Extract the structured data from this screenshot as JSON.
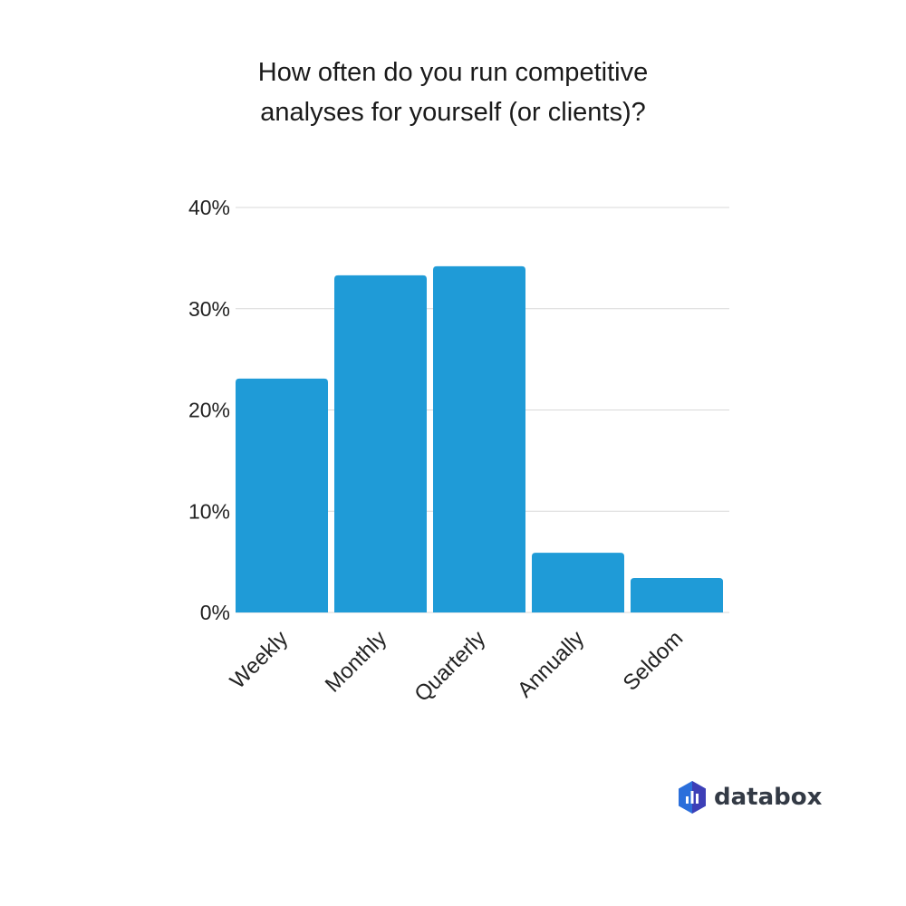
{
  "chart_data": {
    "type": "bar",
    "title_lines": [
      "How often do you run competitive",
      "analyses for yourself (or clients)?"
    ],
    "categories": [
      "Weekly",
      "Monthly",
      "Quarterly",
      "Annually",
      "Seldom"
    ],
    "values": [
      23.1,
      33.3,
      34.2,
      5.9,
      3.4
    ],
    "ylim": [
      0,
      40
    ],
    "yticks": [
      0,
      10,
      20,
      30,
      40
    ],
    "ytick_labels": [
      "0%",
      "10%",
      "20%",
      "30%",
      "40%"
    ],
    "grid": true,
    "bar_color": "#1f9bd7",
    "grid_color": "#d9d9d9"
  },
  "branding": {
    "logo_text": "databox",
    "logo_colors": [
      "#2b6fdb",
      "#3d3fb7",
      "#1fa3e0"
    ]
  }
}
